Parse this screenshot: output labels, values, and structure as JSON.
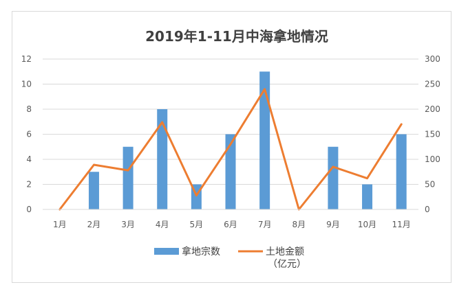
{
  "chart_data": {
    "type": "bar",
    "title": "2019年1-11月中海拿地情况",
    "categories": [
      "1月",
      "2月",
      "3月",
      "4月",
      "5月",
      "6月",
      "7月",
      "8月",
      "9月",
      "10月",
      "11月"
    ],
    "y_left": {
      "ticks": [
        "0",
        "2",
        "4",
        "6",
        "8",
        "10",
        "12"
      ],
      "range": [
        0,
        12
      ]
    },
    "y_right": {
      "ticks": [
        "0",
        "50",
        "100",
        "150",
        "200",
        "250",
        "300"
      ],
      "range": [
        0,
        300
      ]
    },
    "series": [
      {
        "name": "拿地宗数",
        "kind": "bar",
        "axis": "left",
        "color": "#5b9bd5",
        "values": [
          0,
          3,
          5,
          8,
          2,
          6,
          11,
          0,
          5,
          2,
          6
        ]
      },
      {
        "name": "土地金额",
        "name_line2": "（亿元）",
        "kind": "line",
        "axis": "right",
        "color": "#ed7d31",
        "values": [
          0,
          89,
          78,
          174,
          28,
          130,
          240,
          0,
          85,
          62,
          170
        ]
      }
    ],
    "grid": true,
    "legend_position": "bottom"
  }
}
